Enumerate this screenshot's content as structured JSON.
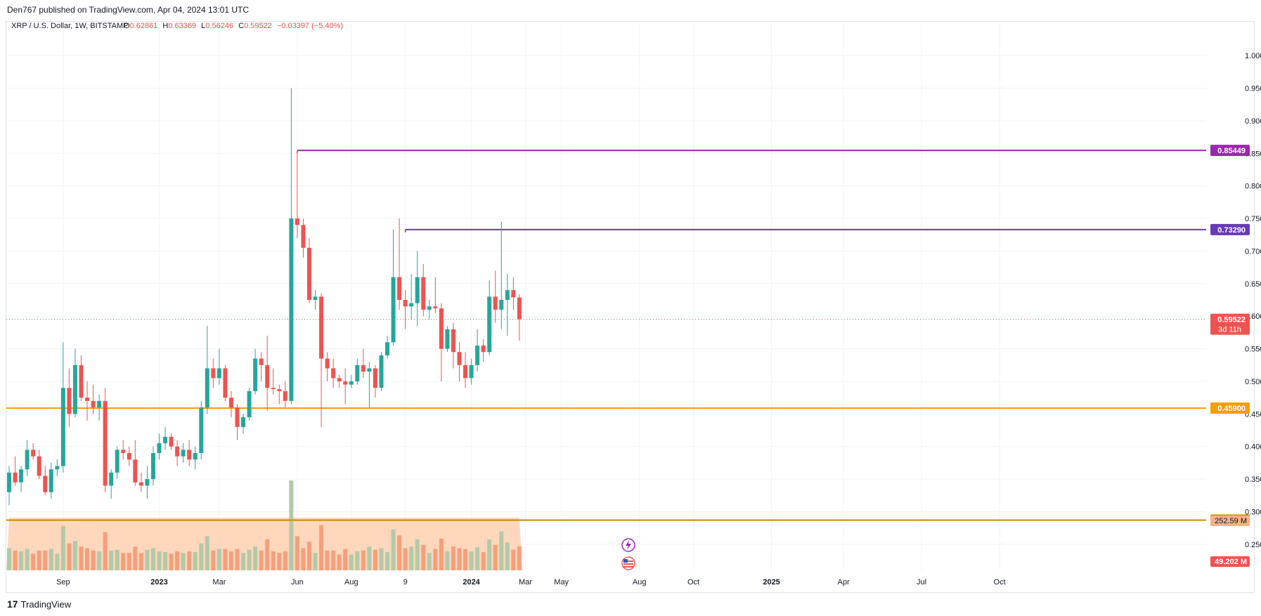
{
  "header": {
    "publisher": "Den767 published on TradingView.com, Apr 04, 2024 13:01 UTC"
  },
  "footer": {
    "brand": "TradingView",
    "logo_glyph": "17"
  },
  "legend": {
    "symbol": "XRP / U.S. Dollar, 1W, BITSTAMP",
    "o_label": "O",
    "o": "0.62861",
    "h_label": "H",
    "h": "0.63369",
    "l_label": "L",
    "l": "0.56246",
    "c_label": "C",
    "c": "0.59522",
    "change": "−0.03397 (−5.40%)"
  },
  "colors": {
    "up": "#26a69a",
    "down": "#ef5350",
    "vol_up": "#b3c9a8",
    "vol_down": "#f4a07c",
    "ma_area": "#ffd0b0",
    "purple": "#9c27b0",
    "indigo": "#673ab7",
    "orange": "#f59e0b",
    "dark_orange": "#c98a00"
  },
  "chart_data": {
    "type": "candlestick",
    "symbol": "XRP / U.S. Dollar",
    "interval": "1W",
    "exchange": "BITSTAMP",
    "ylim": [
      0.21,
      1.04
    ],
    "y_ticks": [
      "1.00000",
      "0.95000",
      "0.90000",
      "0.85000",
      "0.80000",
      "0.75000",
      "0.70000",
      "0.65000",
      "0.60000",
      "0.55000",
      "0.50000",
      "0.45000",
      "0.40000",
      "0.35000",
      "0.30000",
      "0.25000"
    ],
    "x_ticks": [
      "Sep",
      "2023",
      "Mar",
      "Jun",
      "Aug",
      "9",
      "2024",
      "Mar",
      "May",
      "Aug",
      "Oct",
      "2025",
      "Apr",
      "Jul",
      "Oct"
    ],
    "candles": [
      {
        "o": 0.33,
        "h": 0.37,
        "l": 0.31,
        "c": 0.36
      },
      {
        "o": 0.36,
        "h": 0.385,
        "l": 0.34,
        "c": 0.345
      },
      {
        "o": 0.345,
        "h": 0.37,
        "l": 0.33,
        "c": 0.365
      },
      {
        "o": 0.365,
        "h": 0.41,
        "l": 0.355,
        "c": 0.395
      },
      {
        "o": 0.395,
        "h": 0.405,
        "l": 0.38,
        "c": 0.385
      },
      {
        "o": 0.385,
        "h": 0.395,
        "l": 0.35,
        "c": 0.355
      },
      {
        "o": 0.355,
        "h": 0.37,
        "l": 0.325,
        "c": 0.33
      },
      {
        "o": 0.33,
        "h": 0.375,
        "l": 0.32,
        "c": 0.365
      },
      {
        "o": 0.365,
        "h": 0.38,
        "l": 0.355,
        "c": 0.37
      },
      {
        "o": 0.37,
        "h": 0.56,
        "l": 0.36,
        "c": 0.49
      },
      {
        "o": 0.49,
        "h": 0.52,
        "l": 0.43,
        "c": 0.45
      },
      {
        "o": 0.45,
        "h": 0.55,
        "l": 0.445,
        "c": 0.525
      },
      {
        "o": 0.525,
        "h": 0.54,
        "l": 0.47,
        "c": 0.475
      },
      {
        "o": 0.475,
        "h": 0.5,
        "l": 0.44,
        "c": 0.47
      },
      {
        "o": 0.47,
        "h": 0.495,
        "l": 0.45,
        "c": 0.46
      },
      {
        "o": 0.46,
        "h": 0.48,
        "l": 0.44,
        "c": 0.47
      },
      {
        "o": 0.47,
        "h": 0.49,
        "l": 0.33,
        "c": 0.34
      },
      {
        "o": 0.34,
        "h": 0.365,
        "l": 0.32,
        "c": 0.36
      },
      {
        "o": 0.36,
        "h": 0.4,
        "l": 0.35,
        "c": 0.395
      },
      {
        "o": 0.395,
        "h": 0.41,
        "l": 0.38,
        "c": 0.39
      },
      {
        "o": 0.39,
        "h": 0.4,
        "l": 0.37,
        "c": 0.38
      },
      {
        "o": 0.38,
        "h": 0.41,
        "l": 0.34,
        "c": 0.345
      },
      {
        "o": 0.345,
        "h": 0.36,
        "l": 0.33,
        "c": 0.34
      },
      {
        "o": 0.34,
        "h": 0.37,
        "l": 0.32,
        "c": 0.35
      },
      {
        "o": 0.35,
        "h": 0.4,
        "l": 0.34,
        "c": 0.39
      },
      {
        "o": 0.39,
        "h": 0.42,
        "l": 0.38,
        "c": 0.405
      },
      {
        "o": 0.405,
        "h": 0.43,
        "l": 0.395,
        "c": 0.415
      },
      {
        "o": 0.415,
        "h": 0.42,
        "l": 0.395,
        "c": 0.4
      },
      {
        "o": 0.4,
        "h": 0.41,
        "l": 0.37,
        "c": 0.385
      },
      {
        "o": 0.385,
        "h": 0.405,
        "l": 0.375,
        "c": 0.395
      },
      {
        "o": 0.395,
        "h": 0.41,
        "l": 0.37,
        "c": 0.38
      },
      {
        "o": 0.38,
        "h": 0.4,
        "l": 0.365,
        "c": 0.39
      },
      {
        "o": 0.39,
        "h": 0.47,
        "l": 0.38,
        "c": 0.46
      },
      {
        "o": 0.46,
        "h": 0.585,
        "l": 0.45,
        "c": 0.52
      },
      {
        "o": 0.52,
        "h": 0.535,
        "l": 0.49,
        "c": 0.505
      },
      {
        "o": 0.505,
        "h": 0.55,
        "l": 0.495,
        "c": 0.52
      },
      {
        "o": 0.52,
        "h": 0.525,
        "l": 0.47,
        "c": 0.475
      },
      {
        "o": 0.475,
        "h": 0.485,
        "l": 0.445,
        "c": 0.46
      },
      {
        "o": 0.46,
        "h": 0.465,
        "l": 0.41,
        "c": 0.43
      },
      {
        "o": 0.43,
        "h": 0.45,
        "l": 0.42,
        "c": 0.445
      },
      {
        "o": 0.445,
        "h": 0.49,
        "l": 0.44,
        "c": 0.485
      },
      {
        "o": 0.485,
        "h": 0.55,
        "l": 0.48,
        "c": 0.535
      },
      {
        "o": 0.535,
        "h": 0.545,
        "l": 0.5,
        "c": 0.525
      },
      {
        "o": 0.525,
        "h": 0.57,
        "l": 0.455,
        "c": 0.49
      },
      {
        "o": 0.49,
        "h": 0.52,
        "l": 0.48,
        "c": 0.488
      },
      {
        "o": 0.488,
        "h": 0.495,
        "l": 0.465,
        "c": 0.485
      },
      {
        "o": 0.485,
        "h": 0.5,
        "l": 0.46,
        "c": 0.47
      },
      {
        "o": 0.47,
        "h": 0.95,
        "l": 0.465,
        "c": 0.75
      },
      {
        "o": 0.75,
        "h": 0.855,
        "l": 0.72,
        "c": 0.74
      },
      {
        "o": 0.74,
        "h": 0.75,
        "l": 0.69,
        "c": 0.705
      },
      {
        "o": 0.705,
        "h": 0.72,
        "l": 0.62,
        "c": 0.625
      },
      {
        "o": 0.625,
        "h": 0.64,
        "l": 0.61,
        "c": 0.63
      },
      {
        "o": 0.63,
        "h": 0.635,
        "l": 0.43,
        "c": 0.535
      },
      {
        "o": 0.535,
        "h": 0.545,
        "l": 0.5,
        "c": 0.52
      },
      {
        "o": 0.52,
        "h": 0.535,
        "l": 0.49,
        "c": 0.505
      },
      {
        "o": 0.505,
        "h": 0.51,
        "l": 0.49,
        "c": 0.5
      },
      {
        "o": 0.5,
        "h": 0.52,
        "l": 0.465,
        "c": 0.495
      },
      {
        "o": 0.495,
        "h": 0.51,
        "l": 0.49,
        "c": 0.5
      },
      {
        "o": 0.5,
        "h": 0.535,
        "l": 0.495,
        "c": 0.525
      },
      {
        "o": 0.525,
        "h": 0.55,
        "l": 0.505,
        "c": 0.515
      },
      {
        "o": 0.515,
        "h": 0.53,
        "l": 0.46,
        "c": 0.52
      },
      {
        "o": 0.52,
        "h": 0.525,
        "l": 0.475,
        "c": 0.49
      },
      {
        "o": 0.49,
        "h": 0.545,
        "l": 0.485,
        "c": 0.54
      },
      {
        "o": 0.54,
        "h": 0.57,
        "l": 0.535,
        "c": 0.56
      },
      {
        "o": 0.56,
        "h": 0.733,
        "l": 0.555,
        "c": 0.66
      },
      {
        "o": 0.66,
        "h": 0.75,
        "l": 0.61,
        "c": 0.625
      },
      {
        "o": 0.625,
        "h": 0.64,
        "l": 0.58,
        "c": 0.615
      },
      {
        "o": 0.615,
        "h": 0.665,
        "l": 0.595,
        "c": 0.62
      },
      {
        "o": 0.62,
        "h": 0.7,
        "l": 0.585,
        "c": 0.66
      },
      {
        "o": 0.66,
        "h": 0.68,
        "l": 0.6,
        "c": 0.61
      },
      {
        "o": 0.61,
        "h": 0.625,
        "l": 0.595,
        "c": 0.615
      },
      {
        "o": 0.615,
        "h": 0.66,
        "l": 0.605,
        "c": 0.612
      },
      {
        "o": 0.612,
        "h": 0.62,
        "l": 0.5,
        "c": 0.55
      },
      {
        "o": 0.55,
        "h": 0.585,
        "l": 0.545,
        "c": 0.58
      },
      {
        "o": 0.58,
        "h": 0.59,
        "l": 0.52,
        "c": 0.545
      },
      {
        "o": 0.545,
        "h": 0.56,
        "l": 0.5,
        "c": 0.525
      },
      {
        "o": 0.525,
        "h": 0.545,
        "l": 0.49,
        "c": 0.505
      },
      {
        "o": 0.505,
        "h": 0.535,
        "l": 0.495,
        "c": 0.525
      },
      {
        "o": 0.525,
        "h": 0.58,
        "l": 0.515,
        "c": 0.555
      },
      {
        "o": 0.555,
        "h": 0.565,
        "l": 0.53,
        "c": 0.545
      },
      {
        "o": 0.545,
        "h": 0.655,
        "l": 0.54,
        "c": 0.63
      },
      {
        "o": 0.63,
        "h": 0.67,
        "l": 0.59,
        "c": 0.61
      },
      {
        "o": 0.61,
        "h": 0.745,
        "l": 0.58,
        "c": 0.625
      },
      {
        "o": 0.625,
        "h": 0.665,
        "l": 0.57,
        "c": 0.64
      },
      {
        "o": 0.64,
        "h": 0.66,
        "l": 0.61,
        "c": 0.629
      },
      {
        "o": 0.62861,
        "h": 0.63369,
        "l": 0.56246,
        "c": 0.59522
      }
    ],
    "volume_label": "49.202 M",
    "volume_ma_label": "252.59 M",
    "horizontal_levels": [
      {
        "value": 0.85449,
        "label": "0.85449",
        "color": "#9c27b0"
      },
      {
        "value": 0.7329,
        "label": "0.73290",
        "color": "#673ab7"
      },
      {
        "value": 0.459,
        "label": "0.45900",
        "color": "#f59e0b"
      },
      {
        "value": 0.28704,
        "label": "0.28704",
        "color": "#c98a00"
      }
    ],
    "last_price": {
      "value": 0.59522,
      "label": "0.59522",
      "countdown": "3d 11h"
    },
    "grid": true
  }
}
